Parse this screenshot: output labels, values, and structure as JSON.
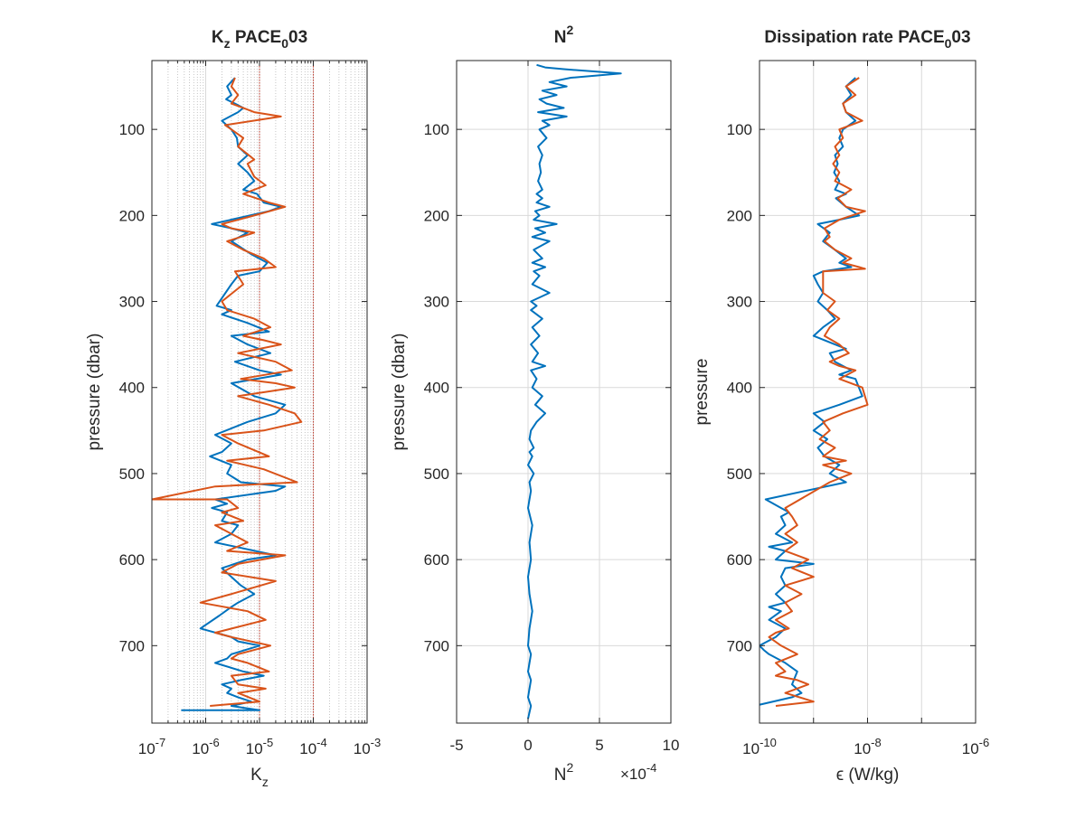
{
  "chart_data": [
    {
      "type": "line",
      "title": "K",
      "title_sub": "z",
      "title_rest": " PACE",
      "title_sub2": "0",
      "title_end": "03",
      "xlabel": "K",
      "xlabel_sub": "z",
      "ylabel": "pressure (dbar)",
      "xscale": "log",
      "xlim": [
        1e-07,
        0.001
      ],
      "ylim": [
        790,
        20
      ],
      "y_reversed": true,
      "grid": "x minor dotted",
      "xtick_labels": [
        {
          "base": "10",
          "exp": "-7"
        },
        {
          "base": "10",
          "exp": "-6"
        },
        {
          "base": "10",
          "exp": "-5"
        },
        {
          "base": "10",
          "exp": "-4"
        },
        {
          "base": "10",
          "exp": "-3"
        }
      ],
      "ytick_labels": [
        "100",
        "200",
        "300",
        "400",
        "500",
        "600",
        "700"
      ],
      "reference_lines": [
        1e-05,
        0.0001
      ],
      "series": [
        {
          "color": "#0072BD",
          "x": [
            3.5e-06,
            2.5e-06,
            3e-06,
            2.4e-06,
            3.5e-06,
            5e-06,
            4e-06,
            2e-06,
            3e-06,
            3.8e-06,
            4e-06,
            6e-06,
            4e-06,
            6e-06,
            8e-06,
            5e-06,
            9e-06,
            1.2e-05,
            2.5e-05,
            1.5e-05,
            1.3e-06,
            3e-06,
            6e-06,
            3e-06,
            4e-06,
            7e-06,
            1.4e-05,
            1e-05,
            4e-06,
            3e-06,
            1.6e-06,
            3e-06,
            2e-06,
            6e-06,
            1.5e-05,
            3e-06,
            6e-06,
            1.6e-05,
            3.5e-06,
            1e-05,
            2.5e-05,
            3e-06,
            8e-06,
            3e-05,
            2e-05,
            6e-06,
            1.5e-06,
            3e-06,
            2e-06,
            1.2e-06,
            3e-06,
            2.5e-06,
            4.5e-06,
            3e-05,
            2e-05,
            1.5e-06,
            2.5e-06,
            1.3e-06,
            2.5e-06,
            2e-06,
            4e-06,
            3e-06,
            1.5e-06,
            2e-05,
            6e-06,
            2e-06,
            3e-06,
            4.5e-06,
            8e-06,
            4e-06,
            3e-06,
            1.8e-06,
            8e-07,
            3e-06,
            4e-06,
            1e-05,
            3e-06,
            2.5e-06,
            1.5e-06,
            5e-06,
            1.2e-05,
            4.5e-06,
            2e-06,
            3e-06,
            2.5e-06,
            4e-06,
            7e-06,
            3e-06,
            1e-05,
            3.5e-07
          ],
          "y": [
            40,
            50,
            60,
            65,
            70,
            75,
            80,
            90,
            100,
            110,
            120,
            130,
            140,
            150,
            160,
            170,
            175,
            185,
            190,
            195,
            210,
            215,
            220,
            230,
            235,
            245,
            255,
            265,
            270,
            280,
            305,
            310,
            315,
            325,
            335,
            340,
            350,
            360,
            370,
            380,
            385,
            395,
            410,
            420,
            430,
            440,
            455,
            465,
            475,
            480,
            490,
            500,
            510,
            515,
            520,
            530,
            535,
            540,
            545,
            555,
            560,
            570,
            580,
            595,
            600,
            610,
            620,
            630,
            640,
            650,
            655,
            665,
            680,
            690,
            695,
            700,
            710,
            715,
            720,
            730,
            735,
            740,
            745,
            750,
            755,
            760,
            765,
            770,
            775,
            775
          ]
        },
        {
          "color": "#D95319",
          "x": [
            3.5e-06,
            3e-06,
            4e-06,
            3e-06,
            5e-06,
            8e-06,
            2.5e-05,
            2.3e-06,
            3e-06,
            5e-06,
            4e-06,
            8e-06,
            6e-06,
            8e-06,
            1.3e-05,
            5e-06,
            1.5e-05,
            3e-05,
            8e-06,
            2e-06,
            3e-06,
            8e-06,
            2.5e-06,
            5e-06,
            1.2e-05,
            2e-05,
            3.5e-06,
            5e-06,
            2e-06,
            2.5e-06,
            8e-06,
            1.6e-05,
            5e-06,
            1.2e-05,
            2.5e-05,
            4e-06,
            2e-05,
            4e-05,
            4.5e-06,
            2e-05,
            4.5e-05,
            4e-06,
            1.5e-05,
            4.5e-05,
            6e-05,
            1.2e-05,
            2e-06,
            4e-06,
            1.5e-05,
            2.5e-06,
            1.2e-05,
            5e-05,
            1.5e-06,
            1e-07,
            2.5e-06,
            4e-06,
            2e-06,
            5e-06,
            1.5e-06,
            3e-06,
            6e-06,
            2.5e-06,
            3e-05,
            4e-06,
            2e-06,
            2e-05,
            3e-06,
            8e-07,
            6e-06,
            1.3e-05,
            1.5e-06,
            3e-06,
            1.6e-05,
            4e-06,
            3e-06,
            6e-06,
            1.5e-05,
            3e-06,
            4e-06,
            1.3e-05,
            4e-06,
            1e-05,
            1.2e-06
          ],
          "y": [
            40,
            50,
            60,
            70,
            75,
            80,
            85,
            95,
            100,
            110,
            120,
            135,
            140,
            155,
            165,
            175,
            185,
            190,
            200,
            210,
            215,
            220,
            230,
            240,
            250,
            260,
            265,
            280,
            300,
            310,
            320,
            330,
            340,
            345,
            350,
            360,
            370,
            380,
            390,
            395,
            400,
            410,
            420,
            430,
            440,
            450,
            455,
            465,
            480,
            485,
            495,
            510,
            515,
            530,
            530,
            540,
            545,
            555,
            560,
            570,
            580,
            590,
            595,
            605,
            615,
            625,
            640,
            650,
            660,
            670,
            685,
            690,
            700,
            710,
            715,
            720,
            730,
            735,
            745,
            750,
            755,
            765,
            770
          ]
        }
      ]
    },
    {
      "type": "line",
      "title": "N",
      "title_sup": "2",
      "xlabel": "N",
      "xlabel_sup": "2",
      "ylabel": "pressure (dbar)",
      "xlim": [
        -5,
        10
      ],
      "ylim": [
        790,
        20
      ],
      "y_reversed": true,
      "grid": "major",
      "xtick_labels": [
        "-5",
        "0",
        "5",
        "10"
      ],
      "ytick_labels": [
        "100",
        "200",
        "300",
        "400",
        "500",
        "600",
        "700"
      ],
      "exponent_label": {
        "prefix": "×10",
        "exp": "-4"
      },
      "series": [
        {
          "color": "#0072BD",
          "x": [
            0.6,
            1.2,
            2.5,
            6.5,
            3,
            1.5,
            2.7,
            1,
            2,
            0.8,
            1.3,
            2.5,
            0.7,
            2.7,
            1,
            1.5,
            0.8,
            1.3,
            0.7,
            1,
            0.8,
            0.9,
            0.7,
            1,
            0.6,
            1,
            0.6,
            1.5,
            0.5,
            0.8,
            0.4,
            2,
            0.5,
            1.2,
            0.3,
            1.5,
            0.4,
            1,
            0.3,
            1.2,
            0.4,
            0.8,
            0.3,
            1.5,
            0.2,
            0.6,
            0.2,
            1,
            0.3,
            0.8,
            0.2,
            0.7,
            0.3,
            1.2,
            0.2,
            0.6,
            0.3,
            1,
            0.5,
            1.2,
            0.6,
            0.2,
            0.1,
            0.4,
            0.1,
            0.3,
            0,
            0.4,
            0.1,
            0.2,
            0,
            0.3,
            0.1,
            0.2,
            0,
            0.1,
            0.3,
            0.1,
            0,
            0.2,
            0.1,
            0,
            0.2,
            0.1,
            0,
            0.2,
            0
          ],
          "y": [
            25,
            28,
            30,
            35,
            40,
            45,
            50,
            55,
            60,
            65,
            70,
            75,
            80,
            85,
            90,
            95,
            100,
            110,
            120,
            130,
            140,
            150,
            160,
            170,
            175,
            180,
            185,
            190,
            195,
            200,
            205,
            210,
            215,
            220,
            225,
            230,
            240,
            250,
            255,
            260,
            265,
            270,
            280,
            290,
            300,
            305,
            310,
            320,
            330,
            340,
            350,
            360,
            370,
            375,
            380,
            390,
            400,
            410,
            420,
            430,
            440,
            450,
            460,
            470,
            475,
            480,
            490,
            500,
            510,
            520,
            540,
            560,
            580,
            600,
            620,
            640,
            660,
            680,
            700,
            710,
            720,
            730,
            740,
            750,
            760,
            770,
            785
          ]
        }
      ]
    },
    {
      "type": "line",
      "title": "Dissipation rate PACE",
      "title_sub": "0",
      "title_end": "03",
      "xlabel": "ϵ (W/kg)",
      "ylabel": "pressure",
      "xscale": "log",
      "xlim": [
        1e-10,
        1e-06
      ],
      "ylim": [
        790,
        20
      ],
      "y_reversed": true,
      "grid": "major",
      "xtick_labels": [
        {
          "base": "10",
          "exp": "-10"
        },
        {
          "base": "10",
          "exp": "-8"
        },
        {
          "base": "10",
          "exp": "-6"
        }
      ],
      "ytick_labels": [
        "100",
        "200",
        "300",
        "400",
        "500",
        "600",
        "700"
      ],
      "series": [
        {
          "color": "#0072BD",
          "x": [
            6e-09,
            4e-09,
            5e-09,
            3.5e-09,
            4e-09,
            6e-09,
            3.5e-09,
            3e-09,
            3.5e-09,
            2.5e-09,
            2.8e-09,
            2.4e-09,
            3e-09,
            2.5e-09,
            4e-09,
            2.6e-09,
            4e-09,
            7e-09,
            3e-09,
            1.2e-09,
            2e-09,
            1.5e-09,
            2.5e-09,
            4e-09,
            3e-09,
            5e-09,
            1.5e-09,
            1e-09,
            1.2e-09,
            1.5e-09,
            1.2e-09,
            1.8e-09,
            2.5e-09,
            1.5e-09,
            1e-09,
            2.5e-09,
            4e-09,
            2e-09,
            2.5e-09,
            5e-09,
            3e-09,
            6e-09,
            8e-09,
            3e-09,
            1e-09,
            1.6e-09,
            1e-09,
            1.8e-09,
            1.2e-09,
            1.6e-09,
            3e-09,
            2e-09,
            4e-09,
            1.3e-10,
            2.5e-10,
            3.5e-10,
            2.5e-10,
            3e-10,
            2e-10,
            4e-10,
            1.5e-10,
            3e-10,
            2e-10,
            1e-09,
            3e-10,
            2.5e-10,
            3e-10,
            2e-10,
            3e-10,
            1.5e-10,
            2.5e-10,
            1.5e-10,
            3e-10,
            2e-10,
            1e-10,
            1.2e-10,
            1.5e-10,
            3e-10,
            5e-10,
            4e-10,
            6e-10,
            4e-10,
            8e-11
          ],
          "y": [
            40,
            50,
            60,
            70,
            80,
            90,
            100,
            110,
            120,
            130,
            140,
            150,
            160,
            170,
            175,
            180,
            190,
            200,
            205,
            210,
            220,
            230,
            240,
            250,
            255,
            260,
            265,
            270,
            280,
            290,
            300,
            310,
            320,
            330,
            340,
            350,
            355,
            360,
            370,
            380,
            385,
            390,
            410,
            420,
            430,
            440,
            450,
            460,
            470,
            480,
            490,
            500,
            510,
            530,
            540,
            545,
            550,
            560,
            570,
            580,
            585,
            590,
            600,
            605,
            610,
            620,
            630,
            640,
            650,
            655,
            660,
            670,
            680,
            690,
            700,
            705,
            710,
            720,
            730,
            745,
            755,
            760,
            770
          ]
        },
        {
          "color": "#D95319",
          "x": [
            7e-09,
            4e-09,
            6e-09,
            3.5e-09,
            4e-09,
            8e-09,
            3e-09,
            3.5e-09,
            2.5e-09,
            3e-09,
            2.3e-09,
            3e-09,
            2.5e-09,
            5e-09,
            2.8e-09,
            4e-09,
            9e-09,
            3e-09,
            1.6e-09,
            2e-09,
            1.6e-09,
            2.5e-09,
            5e-09,
            3.5e-09,
            7e-09,
            9e-09,
            1.5e-09,
            1.5e-09,
            1.5e-09,
            2.5e-09,
            1.8e-09,
            3e-09,
            2e-09,
            1.6e-09,
            3e-09,
            4.5e-09,
            2e-09,
            3e-09,
            6e-09,
            3e-09,
            8e-09,
            1e-08,
            3.5e-09,
            1.5e-09,
            2e-09,
            1.3e-09,
            2.5e-09,
            1.5e-09,
            4e-09,
            1.5e-09,
            5e-09,
            2e-09,
            3e-10,
            4e-10,
            5e-10,
            3e-10,
            5e-10,
            3e-10,
            8e-10,
            4e-10,
            1e-09,
            3e-10,
            6e-10,
            3e-10,
            4e-10,
            2e-10,
            3.5e-10,
            2e-10,
            1.5e-10,
            2.5e-10,
            5e-10,
            2e-10,
            3e-10,
            2e-10,
            5e-10,
            8e-10,
            3e-10,
            1e-09,
            2e-10
          ],
          "y": [
            40,
            50,
            60,
            70,
            80,
            90,
            100,
            110,
            120,
            130,
            140,
            150,
            160,
            170,
            180,
            190,
            195,
            205,
            215,
            225,
            230,
            240,
            250,
            255,
            260,
            262,
            265,
            275,
            290,
            300,
            310,
            320,
            330,
            340,
            350,
            360,
            370,
            375,
            380,
            390,
            400,
            420,
            430,
            440,
            450,
            460,
            470,
            480,
            485,
            490,
            500,
            510,
            540,
            550,
            560,
            570,
            580,
            590,
            600,
            610,
            620,
            630,
            640,
            650,
            660,
            670,
            680,
            685,
            690,
            700,
            710,
            720,
            730,
            735,
            740,
            745,
            755,
            765,
            770
          ]
        }
      ]
    }
  ]
}
